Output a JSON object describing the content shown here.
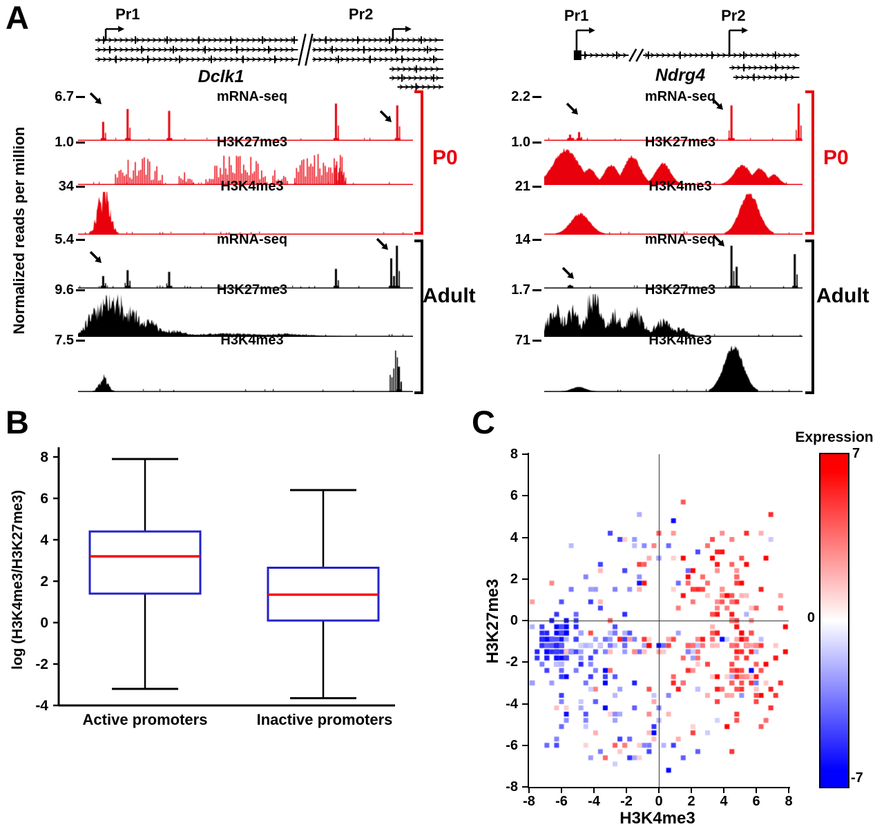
{
  "figure": {
    "panels": {
      "a": "A",
      "b": "B",
      "c": "C"
    },
    "background": "#ffffff"
  },
  "panel_a": {
    "y_axis_label": "Normalized reads per million",
    "group_labels": {
      "p0": "P0",
      "adult": "Adult"
    },
    "colors": {
      "p0": "#e8000c",
      "adult": "#000000"
    }
  },
  "panel_b": {
    "y_axis_label": "log (H3K4me3/H3K27me3)"
  },
  "panel_c": {
    "x_axis_label": "H3K4me3",
    "y_axis_label": "H3K27me3",
    "colorbar": {
      "title": "Expression",
      "max_label": "7",
      "zero_label": "0",
      "min_label": "-7",
      "max_color": "#ff0000",
      "mid_color": "#ffffff",
      "min_color": "#0000ff"
    }
  },
  "chart_data": [
    {
      "type": "genome-tracks",
      "gene": "Dclk1",
      "promoters": [
        {
          "label": "Pr1",
          "x": 0.03,
          "row": 0
        },
        {
          "label": "Pr2",
          "x": 0.855,
          "row": 0
        }
      ],
      "transcripts": [
        {
          "x1": 0.0,
          "x2": 1.0,
          "row": 0
        },
        {
          "x1": 0.0,
          "x2": 1.0,
          "row": 1
        },
        {
          "x1": 0.0,
          "x2": 1.0,
          "row": 2
        },
        {
          "x1": 0.845,
          "x2": 1.0,
          "row": 3
        },
        {
          "x1": 0.845,
          "x2": 1.0,
          "row": 4
        },
        {
          "x1": 0.868,
          "x2": 1.0,
          "row": 5
        }
      ],
      "break_x": 0.6,
      "tracks": [
        {
          "group": "P0",
          "label": "mRNA-seq",
          "scale": "6.7",
          "peaks": [
            {
              "t": "spike",
              "x": 0.075,
              "h": 0.5
            },
            {
              "t": "spike",
              "x": 0.148,
              "h": 0.85
            },
            {
              "t": "spike",
              "x": 0.272,
              "h": 0.8
            },
            {
              "t": "spike",
              "x": 0.77,
              "h": 1.0
            },
            {
              "t": "spike",
              "x": 0.953,
              "h": 0.95
            }
          ]
        },
        {
          "group": "P0",
          "label": "H3K27me3",
          "scale": "1.0",
          "peaks": [
            {
              "t": "noise",
              "x": 0.18,
              "w": 0.15,
              "h": 0.85
            },
            {
              "t": "noise",
              "x": 0.32,
              "w": 0.05,
              "h": 0.4
            },
            {
              "t": "noise",
              "x": 0.47,
              "w": 0.19,
              "h": 0.9
            },
            {
              "t": "noise",
              "x": 0.6,
              "w": 0.05,
              "h": 0.5
            },
            {
              "t": "noise",
              "x": 0.72,
              "w": 0.16,
              "h": 0.95
            },
            {
              "t": "noise",
              "x": 0.78,
              "w": 0.04,
              "h": 0.9
            }
          ]
        },
        {
          "group": "P0",
          "label": "H3K4me3",
          "scale": "34",
          "peaks": [
            {
              "t": "mass",
              "x": 0.077,
              "w": 0.016,
              "h": 1.0
            }
          ]
        },
        {
          "group": "Adult",
          "label": "mRNA-seq",
          "scale": "5.4",
          "peaks": [
            {
              "t": "spike",
              "x": 0.075,
              "h": 0.28
            },
            {
              "t": "spike",
              "x": 0.148,
              "h": 0.42
            },
            {
              "t": "spike",
              "x": 0.272,
              "h": 0.38
            },
            {
              "t": "spike",
              "x": 0.77,
              "h": 0.45
            },
            {
              "t": "spike",
              "x": 0.935,
              "h": 0.7
            },
            {
              "t": "spike",
              "x": 0.952,
              "h": 1.0
            }
          ]
        },
        {
          "group": "Adult",
          "label": "H3K27me3",
          "scale": "9.6",
          "peaks": [
            {
              "t": "mass",
              "x": 0.055,
              "w": 0.025,
              "h": 0.6
            },
            {
              "t": "mass",
              "x": 0.09,
              "w": 0.022,
              "h": 1.0
            },
            {
              "t": "mass",
              "x": 0.12,
              "w": 0.02,
              "h": 0.85
            },
            {
              "t": "mass",
              "x": 0.16,
              "w": 0.025,
              "h": 0.55
            },
            {
              "t": "mass",
              "x": 0.21,
              "w": 0.03,
              "h": 0.32
            },
            {
              "t": "mass",
              "x": 0.28,
              "w": 0.04,
              "h": 0.12
            },
            {
              "t": "mass",
              "x": 0.45,
              "w": 0.08,
              "h": 0.06
            },
            {
              "t": "mass",
              "x": 0.62,
              "w": 0.06,
              "h": 0.05
            }
          ]
        },
        {
          "group": "Adult",
          "label": "H3K4me3",
          "scale": "7.5",
          "peaks": [
            {
              "t": "mass",
              "x": 0.077,
              "w": 0.012,
              "h": 0.28
            },
            {
              "t": "noise",
              "x": 0.945,
              "w": 0.04,
              "h": 1.0
            },
            {
              "t": "spike",
              "x": 0.958,
              "h": 0.55
            }
          ]
        }
      ],
      "arrows": [
        {
          "track": 0,
          "fx": 0.031,
          "dy": -14
        },
        {
          "track": 0,
          "fx": 0.897,
          "dy": 12
        },
        {
          "track": 3,
          "fx": 0.031,
          "dy": 10
        },
        {
          "track": 3,
          "fx": 0.887,
          "dy": -9
        }
      ]
    },
    {
      "type": "genome-tracks",
      "gene": "Ndrg4",
      "promoters": [
        {
          "label": "Pr1",
          "x": 0.125,
          "row": 0
        },
        {
          "label": "Pr2",
          "x": 0.715,
          "row": 0
        }
      ],
      "transcripts": [
        {
          "x1": 0.125,
          "x2": 0.985,
          "row": 0,
          "startBox": true
        },
        {
          "x1": 0.715,
          "x2": 0.985,
          "row": 1
        },
        {
          "x1": 0.73,
          "x2": 0.985,
          "row": 2
        }
      ],
      "break_x": 0.35,
      "tracks": [
        {
          "group": "P0",
          "label": "mRNA-seq",
          "scale": "2.2",
          "peaks": [
            {
              "t": "spike",
              "x": 0.1,
              "h": 0.15
            },
            {
              "t": "spike",
              "x": 0.135,
              "h": 0.22
            },
            {
              "t": "spike",
              "x": 0.725,
              "h": 0.95
            },
            {
              "t": "spike",
              "x": 0.985,
              "h": 1.0
            }
          ]
        },
        {
          "group": "P0",
          "label": "H3K27me3",
          "scale": "1.0",
          "peaks": [
            {
              "t": "smooth",
              "x": 0.085,
              "w": 0.046,
              "h": 1.0
            },
            {
              "t": "smooth",
              "x": 0.175,
              "w": 0.024,
              "h": 0.45
            },
            {
              "t": "smooth",
              "x": 0.26,
              "w": 0.026,
              "h": 0.55
            },
            {
              "t": "smooth",
              "x": 0.34,
              "w": 0.03,
              "h": 0.8
            },
            {
              "t": "smooth",
              "x": 0.46,
              "w": 0.027,
              "h": 0.6
            },
            {
              "t": "smooth",
              "x": 0.767,
              "w": 0.03,
              "h": 0.55
            },
            {
              "t": "smooth",
              "x": 0.834,
              "w": 0.025,
              "h": 0.45
            },
            {
              "t": "smooth",
              "x": 0.888,
              "w": 0.02,
              "h": 0.28
            }
          ]
        },
        {
          "group": "P0",
          "label": "H3K4me3",
          "scale": "21",
          "peaks": [
            {
              "t": "smooth",
              "x": 0.14,
              "w": 0.035,
              "h": 0.5
            },
            {
              "t": "smooth",
              "x": 0.794,
              "w": 0.035,
              "h": 1.0
            }
          ]
        },
        {
          "group": "Adult",
          "label": "mRNA-seq",
          "scale": "14",
          "peaks": [
            {
              "t": "spike",
              "x": 0.1,
              "h": 0.07
            },
            {
              "t": "spike",
              "x": 0.725,
              "h": 1.0
            },
            {
              "t": "spike",
              "x": 0.745,
              "h": 0.5
            },
            {
              "t": "spike",
              "x": 0.97,
              "h": 0.8
            }
          ]
        },
        {
          "group": "Adult",
          "label": "H3K27me3",
          "scale": "1.7",
          "peaks": [
            {
              "t": "mass",
              "x": 0.045,
              "w": 0.03,
              "h": 0.6
            },
            {
              "t": "mass",
              "x": 0.112,
              "w": 0.025,
              "h": 0.55
            },
            {
              "t": "mass",
              "x": 0.19,
              "w": 0.025,
              "h": 1.0
            },
            {
              "t": "mass",
              "x": 0.27,
              "w": 0.025,
              "h": 0.5
            },
            {
              "t": "mass",
              "x": 0.35,
              "w": 0.03,
              "h": 0.55
            },
            {
              "t": "mass",
              "x": 0.46,
              "w": 0.03,
              "h": 0.35
            },
            {
              "t": "mass",
              "x": 0.527,
              "w": 0.025,
              "h": 0.18
            }
          ]
        },
        {
          "group": "Adult",
          "label": "H3K4me3",
          "scale": "71",
          "peaks": [
            {
              "t": "smooth",
              "x": 0.134,
              "w": 0.025,
              "h": 0.1
            },
            {
              "t": "smooth",
              "x": 0.733,
              "w": 0.035,
              "h": 1.0
            }
          ]
        }
      ],
      "arrows": [
        {
          "track": 0,
          "fx": 0.08,
          "dy": 1
        },
        {
          "track": 0,
          "fx": 0.642,
          "dy": -6
        },
        {
          "track": 3,
          "fx": 0.647,
          "dy": -14
        },
        {
          "track": 4,
          "fx": 0.064,
          "dy": -39
        }
      ]
    },
    {
      "type": "box",
      "ylabel": "log (H3K4me3/H3K27me3)",
      "yticks": [
        8,
        6,
        4,
        2,
        0,
        -2,
        -4
      ],
      "ylim": [
        -4,
        8
      ],
      "box_color": "#2222cc",
      "median_color": "#ff0000",
      "whisker_color": "#000000",
      "boxes": [
        {
          "label": "Active promoters",
          "whisker_low": -3.2,
          "q1": 1.4,
          "median": 3.2,
          "q3": 4.4,
          "whisker_high": 7.9
        },
        {
          "label": "Inactive promoters",
          "whisker_low": -3.65,
          "q1": 0.1,
          "median": 1.35,
          "q3": 2.65,
          "whisker_high": 6.4
        }
      ]
    },
    {
      "type": "scatter-heat",
      "xlabel": "H3K4me3",
      "ylabel": "H3K27me3",
      "xlim": [
        -8,
        8
      ],
      "ylim": [
        -8,
        8
      ],
      "xticks": [
        -8,
        -6,
        -4,
        -2,
        0,
        2,
        4,
        6,
        8
      ],
      "yticks": [
        8,
        6,
        4,
        2,
        0,
        -2,
        -4,
        -6,
        -8
      ],
      "expression_range": [
        -7,
        7
      ],
      "seed": 1234,
      "clusters": [
        {
          "cx": -6.1,
          "cy": -1.2,
          "sx": 0.8,
          "sy": 0.6,
          "n": 70,
          "e_mean": -5.5,
          "e_sd": 1.5
        },
        {
          "cx": -5.2,
          "cy": -2.8,
          "sx": 1.6,
          "sy": 1.4,
          "n": 55,
          "e_mean": -3.5,
          "e_sd": 2
        },
        {
          "cx": -2.8,
          "cy": -1.25,
          "sx": 2.3,
          "sy": 0.2,
          "n": 38,
          "e_mean": -2,
          "e_sd": 2.5
        },
        {
          "cx": 2.6,
          "cy": -1.25,
          "sx": 2.4,
          "sy": 0.2,
          "n": 34,
          "e_mean": 3,
          "e_sd": 2.5
        },
        {
          "cx": 4.6,
          "cy": 1.3,
          "sx": 1.7,
          "sy": 1.3,
          "n": 65,
          "e_mean": 4,
          "e_sd": 2.2
        },
        {
          "cx": 5.7,
          "cy": -2.3,
          "sx": 1.3,
          "sy": 1.1,
          "n": 55,
          "e_mean": 4.5,
          "e_sd": 2
        },
        {
          "cx": 0.8,
          "cy": 3.0,
          "sx": 2.8,
          "sy": 1.2,
          "n": 28,
          "e_mean": 1,
          "e_sd": 3.5
        },
        {
          "cx": -3.2,
          "cy": 2.2,
          "sx": 1.8,
          "sy": 1.2,
          "n": 18,
          "e_mean": -3,
          "e_sd": 2
        },
        {
          "cx": -0.8,
          "cy": -4.6,
          "sx": 3.2,
          "sy": 1.4,
          "n": 42,
          "e_mean": -1.5,
          "e_sd": 3
        },
        {
          "cx": 2.3,
          "cy": -3.6,
          "sx": 2.2,
          "sy": 1.3,
          "n": 30,
          "e_mean": 2.5,
          "e_sd": 2.5
        },
        {
          "cx": 0.0,
          "cy": -6.3,
          "sx": 3.0,
          "sy": 0.8,
          "n": 14,
          "e_mean": -1,
          "e_sd": 3
        },
        {
          "cx": 0.0,
          "cy": 0.5,
          "sx": 4.5,
          "sy": 2.8,
          "n": 26,
          "e_mean": 0,
          "e_sd": 4
        }
      ]
    }
  ]
}
